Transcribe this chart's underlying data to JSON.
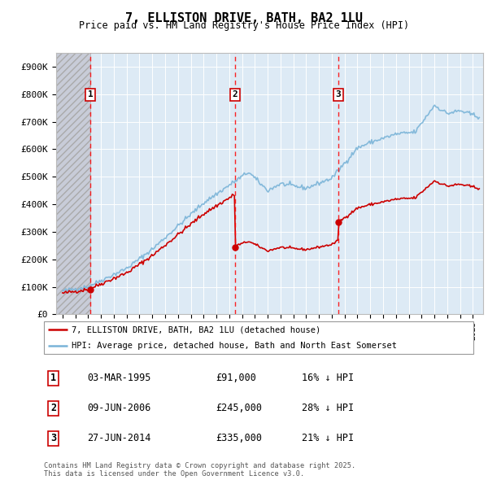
{
  "title": "7, ELLISTON DRIVE, BATH, BA2 1LU",
  "subtitle": "Price paid vs. HM Land Registry's House Price Index (HPI)",
  "ylim": [
    0,
    950000
  ],
  "yticks": [
    0,
    100000,
    200000,
    300000,
    400000,
    500000,
    600000,
    700000,
    800000,
    900000
  ],
  "ytick_labels": [
    "£0",
    "£100K",
    "£200K",
    "£300K",
    "£400K",
    "£500K",
    "£600K",
    "£700K",
    "£800K",
    "£900K"
  ],
  "hpi_color": "#7ab4d8",
  "price_color": "#cc0000",
  "background_plot": "#ddeaf5",
  "background_hatch": "#c8ccd8",
  "grid_color": "#ffffff",
  "transactions": [
    {
      "date_num": 1995.17,
      "price": 91000,
      "label": "1"
    },
    {
      "date_num": 2006.44,
      "price": 245000,
      "label": "2"
    },
    {
      "date_num": 2014.49,
      "price": 335000,
      "label": "3"
    }
  ],
  "transaction_table": [
    {
      "num": "1",
      "date": "03-MAR-1995",
      "price": "£91,000",
      "hpi": "16% ↓ HPI"
    },
    {
      "num": "2",
      "date": "09-JUN-2006",
      "price": "£245,000",
      "hpi": "28% ↓ HPI"
    },
    {
      "num": "3",
      "date": "27-JUN-2014",
      "price": "£335,000",
      "hpi": "21% ↓ HPI"
    }
  ],
  "legend_entries": [
    {
      "label": "7, ELLISTON DRIVE, BATH, BA2 1LU (detached house)",
      "color": "#cc0000"
    },
    {
      "label": "HPI: Average price, detached house, Bath and North East Somerset",
      "color": "#7ab4d8"
    }
  ],
  "footer": "Contains HM Land Registry data © Crown copyright and database right 2025.\nThis data is licensed under the Open Government Licence v3.0.",
  "xlim_start": 1992.5,
  "xlim_end": 2025.8,
  "noise_seed": 42
}
